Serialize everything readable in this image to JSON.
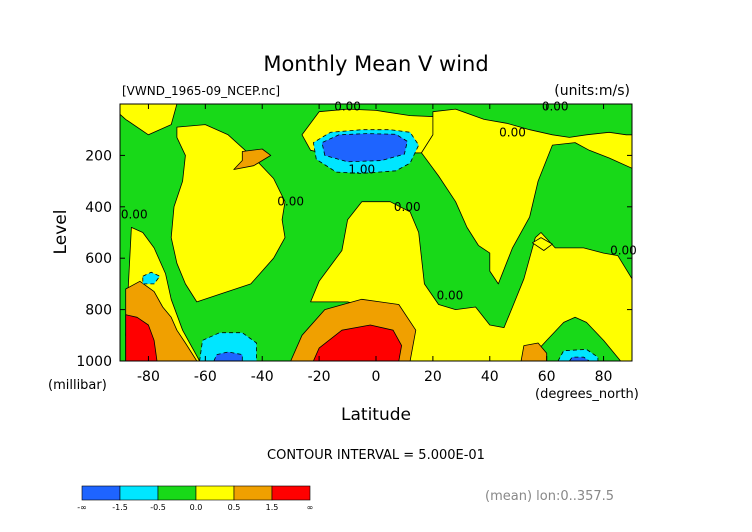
{
  "chart_data": {
    "type": "contour",
    "title": "Monthly Mean V wind",
    "file_label": "[VWND_1965-09_NCEP.nc]",
    "units_label": "(units:m/s)",
    "ylabel": "Level",
    "yunits": "(millibar)",
    "xlabel": "Latitude",
    "xunits": "(degrees_north)",
    "xlim": [
      -90,
      90
    ],
    "ylim": [
      0,
      1000
    ],
    "x_ticks": [
      -80,
      -60,
      -40,
      -20,
      0,
      20,
      40,
      60,
      80
    ],
    "y_ticks": [
      200,
      400,
      600,
      800,
      1000
    ],
    "contour_interval": "CONTOUR INTERVAL = 5.000E-01",
    "footer_note": "(mean) lon:0..357.5",
    "contour_labels": [
      {
        "text": "0.00",
        "lat": -10,
        "lev": 10
      },
      {
        "text": "0.00",
        "lat": 63,
        "lev": 10
      },
      {
        "text": "0.00",
        "lat": 48,
        "lev": 110
      },
      {
        "text": "1.00",
        "lat": -5,
        "lev": 255
      },
      {
        "text": "0.00",
        "lat": -85,
        "lev": 430
      },
      {
        "text": "0.00",
        "lat": -30,
        "lev": 380
      },
      {
        "text": "0.00",
        "lat": 11,
        "lev": 400
      },
      {
        "text": "0.00",
        "lat": 87,
        "lev": 570
      },
      {
        "text": "0.00",
        "lat": 26,
        "lev": 745
      }
    ],
    "colorbar": {
      "bins": [
        {
          "color": "#1e64ff",
          "label": "-∞"
        },
        {
          "color": "#00e6ff",
          "label": "-1.5"
        },
        {
          "color": "#18d918",
          "label": "-0.5"
        },
        {
          "color": "#ffff00",
          "label": "0.0"
        },
        {
          "color": "#f0a000",
          "label": "0.5"
        },
        {
          "color": "#ff0000",
          "label": "1.5"
        }
      ],
      "end_label": "∞"
    },
    "regions": [
      {
        "level": "positive",
        "color": "#ffff00",
        "poly": [
          [
            -70,
            90
          ],
          [
            -60,
            80
          ],
          [
            -52,
            120
          ],
          [
            -47,
            170
          ],
          [
            -42,
            220
          ],
          [
            -36,
            290
          ],
          [
            -32,
            380
          ],
          [
            -33,
            450
          ],
          [
            -32,
            520
          ],
          [
            -36,
            600
          ],
          [
            -44,
            700
          ],
          [
            -55,
            740
          ],
          [
            -63,
            770
          ],
          [
            -67,
            700
          ],
          [
            -70,
            620
          ],
          [
            -72,
            520
          ],
          [
            -71,
            400
          ],
          [
            -68,
            300
          ],
          [
            -67,
            200
          ],
          [
            -70,
            130
          ]
        ]
      },
      {
        "level": "positive",
        "color": "#ffff00",
        "poly": [
          [
            -20,
            30
          ],
          [
            -10,
            20
          ],
          [
            0,
            25
          ],
          [
            12,
            45
          ],
          [
            22,
            50
          ],
          [
            20,
            120
          ],
          [
            16,
            190
          ],
          [
            -15,
            200
          ],
          [
            -23,
            180
          ],
          [
            -26,
            120
          ]
        ]
      },
      {
        "level": "positive",
        "color": "#ffff00",
        "poly": [
          [
            -23,
            770
          ],
          [
            -20,
            690
          ],
          [
            -12,
            570
          ],
          [
            -10,
            450
          ],
          [
            -5,
            380
          ],
          [
            5,
            380
          ],
          [
            12,
            420
          ],
          [
            15,
            500
          ],
          [
            17,
            700
          ],
          [
            22,
            780
          ],
          [
            28,
            800
          ],
          [
            35,
            790
          ],
          [
            40,
            860
          ],
          [
            45,
            870
          ],
          [
            48,
            790
          ],
          [
            52,
            680
          ],
          [
            56,
            520
          ],
          [
            58,
            500
          ],
          [
            63,
            560
          ],
          [
            73,
            560
          ],
          [
            80,
            580
          ],
          [
            85,
            590
          ],
          [
            90,
            680
          ],
          [
            90,
            1000
          ],
          [
            86,
            1000
          ],
          [
            80,
            920
          ],
          [
            74,
            850
          ],
          [
            70,
            830
          ],
          [
            66,
            850
          ],
          [
            60,
            920
          ],
          [
            55,
            980
          ],
          [
            52,
            1000
          ],
          [
            12,
            1000
          ],
          [
            8,
            880
          ],
          [
            0,
            800
          ],
          [
            -10,
            770
          ]
        ]
      },
      {
        "level": "positive",
        "color": "#ffff00",
        "poly": [
          [
            55,
            540
          ],
          [
            58,
            520
          ],
          [
            62,
            545
          ],
          [
            59,
            570
          ]
        ]
      },
      {
        "level": "positive",
        "color": "#ffff00",
        "poly": [
          [
            20,
            30
          ],
          [
            28,
            20
          ],
          [
            38,
            60
          ],
          [
            46,
            75
          ],
          [
            54,
            100
          ],
          [
            62,
            120
          ],
          [
            68,
            130
          ],
          [
            74,
            120
          ],
          [
            82,
            110
          ],
          [
            88,
            120
          ],
          [
            90,
            120
          ],
          [
            90,
            250
          ],
          [
            82,
            210
          ],
          [
            75,
            180
          ],
          [
            70,
            150
          ],
          [
            62,
            160
          ],
          [
            57,
            300
          ],
          [
            54,
            440
          ],
          [
            48,
            560
          ],
          [
            43,
            700
          ],
          [
            40,
            650
          ],
          [
            40,
            580
          ],
          [
            36,
            550
          ],
          [
            32,
            480
          ],
          [
            28,
            380
          ],
          [
            22,
            280
          ],
          [
            16,
            190
          ],
          [
            20,
            120
          ]
        ]
      },
      {
        "level": "positive",
        "color": "#ffff00",
        "poly": [
          [
            -86,
            480
          ],
          [
            -82,
            500
          ],
          [
            -78,
            560
          ],
          [
            -74,
            660
          ],
          [
            -72,
            760
          ],
          [
            -68,
            880
          ],
          [
            -62,
            1000
          ],
          [
            -86,
            1000
          ],
          [
            -88,
            900
          ]
        ]
      },
      {
        "level": "positive",
        "color": "#ffff00",
        "poly": [
          [
            -90,
            0
          ],
          [
            -70,
            0
          ],
          [
            -72,
            80
          ],
          [
            -80,
            120
          ],
          [
            -88,
            60
          ],
          [
            -90,
            40
          ]
        ]
      },
      {
        "level": "positive_mid",
        "color": "#f0a000",
        "poly": [
          [
            -47,
            185
          ],
          [
            -40,
            175
          ],
          [
            -37,
            200
          ],
          [
            -43,
            240
          ],
          [
            -50,
            255
          ],
          [
            -47,
            220
          ]
        ]
      },
      {
        "level": "positive_mid",
        "color": "#f0a000",
        "poly": [
          [
            -88,
            720
          ],
          [
            -83,
            690
          ],
          [
            -78,
            730
          ],
          [
            -75,
            790
          ],
          [
            -72,
            830
          ],
          [
            -70,
            880
          ],
          [
            -67,
            930
          ],
          [
            -63,
            1000
          ],
          [
            -88,
            1000
          ]
        ]
      },
      {
        "level": "positive_mid",
        "color": "#f0a000",
        "poly": [
          [
            -30,
            1000
          ],
          [
            -26,
            900
          ],
          [
            -18,
            800
          ],
          [
            -5,
            760
          ],
          [
            8,
            780
          ],
          [
            14,
            880
          ],
          [
            12,
            1000
          ]
        ]
      },
      {
        "level": "positive_mid",
        "color": "#f0a000",
        "poly": [
          [
            51,
            1000
          ],
          [
            52,
            940
          ],
          [
            57,
            930
          ],
          [
            60,
            970
          ],
          [
            60,
            1000
          ]
        ]
      },
      {
        "level": "positive_high",
        "color": "#ff0000",
        "poly": [
          [
            -88,
            820
          ],
          [
            -84,
            830
          ],
          [
            -80,
            860
          ],
          [
            -78,
            920
          ],
          [
            -77,
            1000
          ],
          [
            -88,
            1000
          ]
        ]
      },
      {
        "level": "positive_high",
        "color": "#ff0000",
        "poly": [
          [
            -22,
            1000
          ],
          [
            -20,
            950
          ],
          [
            -12,
            880
          ],
          [
            -2,
            860
          ],
          [
            6,
            880
          ],
          [
            9,
            940
          ],
          [
            8,
            1000
          ]
        ]
      },
      {
        "level": "negative_mid",
        "color": "#00e6ff",
        "poly": [
          [
            -21,
            215
          ],
          [
            -22,
            150
          ],
          [
            -16,
            110
          ],
          [
            -5,
            100
          ],
          [
            5,
            100
          ],
          [
            12,
            110
          ],
          [
            15,
            160
          ],
          [
            12,
            230
          ],
          [
            7,
            260
          ],
          [
            -5,
            270
          ],
          [
            -14,
            265
          ]
        ]
      },
      {
        "level": "negative_mid",
        "color": "#00e6ff",
        "poly": [
          [
            -62,
            1000
          ],
          [
            -61,
            920
          ],
          [
            -55,
            890
          ],
          [
            -47,
            890
          ],
          [
            -42,
            930
          ],
          [
            -42,
            1000
          ]
        ]
      },
      {
        "level": "negative_mid",
        "color": "#00e6ff",
        "poly": [
          [
            -82,
            670
          ],
          [
            -79,
            655
          ],
          [
            -76,
            670
          ],
          [
            -78,
            700
          ],
          [
            -82,
            700
          ]
        ]
      },
      {
        "level": "negative_mid",
        "color": "#00e6ff",
        "poly": [
          [
            64,
            1000
          ],
          [
            66,
            960
          ],
          [
            74,
            955
          ],
          [
            78,
            985
          ],
          [
            78,
            1000
          ]
        ]
      },
      {
        "level": "negative_high",
        "color": "#1e64ff",
        "poly": [
          [
            -18,
            200
          ],
          [
            -19,
            150
          ],
          [
            -13,
            120
          ],
          [
            -3,
            115
          ],
          [
            7,
            118
          ],
          [
            11,
            145
          ],
          [
            10,
            195
          ],
          [
            2,
            220
          ],
          [
            -10,
            225
          ]
        ]
      },
      {
        "level": "negative_high",
        "color": "#1e64ff",
        "poly": [
          [
            -57,
            1000
          ],
          [
            -56,
            975
          ],
          [
            -52,
            965
          ],
          [
            -47,
            975
          ],
          [
            -47,
            1000
          ]
        ]
      },
      {
        "level": "negative_high",
        "color": "#1e64ff",
        "poly": [
          [
            68,
            1000
          ],
          [
            69,
            985
          ],
          [
            73,
            985
          ],
          [
            75,
            1000
          ]
        ]
      }
    ]
  }
}
